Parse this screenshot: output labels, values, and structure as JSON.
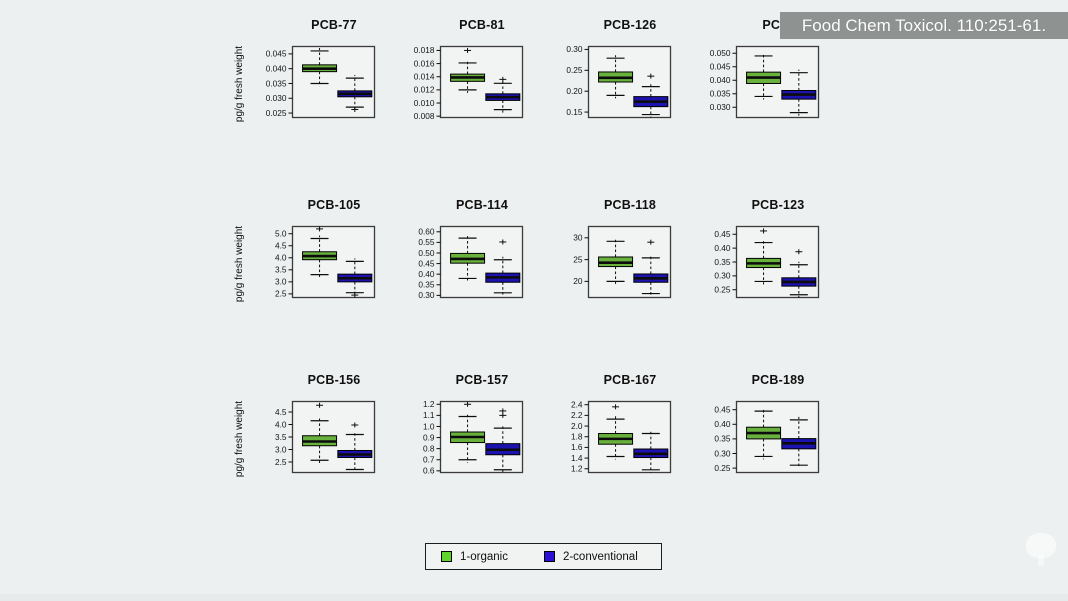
{
  "banner": {
    "text": "Food Chem Toxicol. 110:251-61.",
    "bg_color": "#8e9290",
    "text_color": "#ffffff"
  },
  "legend": {
    "items": [
      {
        "label": "1-organic",
        "color": "#5fd42b"
      },
      {
        "label": "2-conventional",
        "color": "#2b0fd4"
      }
    ]
  },
  "chart_data": {
    "type": "box",
    "ylabel": "pg/g fresh weight",
    "groups": [
      "1-organic",
      "2-conventional"
    ],
    "colors": {
      "organic": "#68b13c",
      "conventional": "#1c12b0",
      "panel": "#f2f4f3",
      "frame": "#3b3b3b"
    },
    "layout": {
      "rows": 3,
      "cols": 4,
      "legend_position": "bottom-center",
      "grid": false
    },
    "plots": [
      {
        "title": "PCB-77",
        "yticks": [
          "0.025",
          "0.030",
          "0.035",
          "0.040",
          "0.045"
        ],
        "ylim": [
          0.0235,
          0.0475
        ],
        "organic": {
          "values": [
            0.035,
            0.039,
            0.04,
            0.0413,
            0.046
          ],
          "outliers": []
        },
        "conventional": {
          "values": [
            0.027,
            0.0305,
            0.0315,
            0.0325,
            0.0368
          ],
          "outliers": [
            0.0262
          ]
        }
      },
      {
        "title": "PCB-81",
        "yticks": [
          "0.008",
          "0.010",
          "0.012",
          "0.014",
          "0.016",
          "0.018"
        ],
        "ylim": [
          0.0078,
          0.0186
        ],
        "organic": {
          "values": [
            0.012,
            0.0133,
            0.0139,
            0.0144,
            0.0161
          ],
          "outliers": [
            0.018
          ]
        },
        "conventional": {
          "values": [
            0.009,
            0.0104,
            0.0109,
            0.0114,
            0.013
          ],
          "outliers": [
            0.0136
          ]
        }
      },
      {
        "title": "PCB-126",
        "yticks": [
          "0.15",
          "0.20",
          "0.25",
          "0.30"
        ],
        "ylim": [
          0.137,
          0.307
        ],
        "organic": {
          "values": [
            0.19,
            0.222,
            0.232,
            0.246,
            0.279
          ],
          "outliers": []
        },
        "conventional": {
          "values": [
            0.144,
            0.163,
            0.175,
            0.187,
            0.211
          ],
          "outliers": [
            0.236
          ]
        }
      },
      {
        "title": "PCB-",
        "yticks": [
          "0.030",
          "0.035",
          "0.040",
          "0.045",
          "0.050"
        ],
        "ylim": [
          0.0262,
          0.0525
        ],
        "organic": {
          "values": [
            0.034,
            0.0388,
            0.041,
            0.043,
            0.049
          ],
          "outliers": []
        },
        "conventional": {
          "values": [
            0.028,
            0.033,
            0.0347,
            0.0362,
            0.0428
          ],
          "outliers": []
        }
      },
      {
        "title": "PCB-105",
        "yticks": [
          "2.5",
          "3.0",
          "3.5",
          "4.0",
          "4.5",
          "5.0"
        ],
        "ylim": [
          2.35,
          5.3
        ],
        "organic": {
          "values": [
            3.3,
            3.92,
            4.07,
            4.25,
            4.8
          ],
          "outliers": [
            5.2
          ]
        },
        "conventional": {
          "values": [
            2.55,
            3.0,
            3.15,
            3.32,
            3.85
          ],
          "outliers": [
            2.45
          ]
        }
      },
      {
        "title": "PCB-114",
        "yticks": [
          "0.30",
          "0.35",
          "0.40",
          "0.45",
          "0.50",
          "0.55",
          "0.60"
        ],
        "ylim": [
          0.29,
          0.625
        ],
        "organic": {
          "values": [
            0.38,
            0.452,
            0.472,
            0.498,
            0.57
          ],
          "outliers": []
        },
        "conventional": {
          "values": [
            0.312,
            0.362,
            0.385,
            0.405,
            0.468
          ],
          "outliers": [
            0.552
          ]
        }
      },
      {
        "title": "PCB-118",
        "yticks": [
          "20",
          "25",
          "30"
        ],
        "ylim": [
          16.3,
          32.6
        ],
        "organic": {
          "values": [
            20.0,
            23.4,
            24.3,
            25.6,
            29.2
          ],
          "outliers": []
        },
        "conventional": {
          "values": [
            17.2,
            19.8,
            20.7,
            21.7,
            25.4
          ],
          "outliers": [
            29.0
          ]
        }
      },
      {
        "title": "PCB-123",
        "yticks": [
          "0.25",
          "0.30",
          "0.35",
          "0.40",
          "0.45"
        ],
        "ylim": [
          0.222,
          0.478
        ],
        "organic": {
          "values": [
            0.28,
            0.33,
            0.345,
            0.363,
            0.42
          ],
          "outliers": [
            0.462
          ]
        },
        "conventional": {
          "values": [
            0.232,
            0.263,
            0.278,
            0.293,
            0.34
          ],
          "outliers": [
            0.387
          ]
        }
      },
      {
        "title": "PCB-156",
        "yticks": [
          "2.5",
          "3.0",
          "3.5",
          "4.0",
          "4.5"
        ],
        "ylim": [
          2.08,
          4.92
        ],
        "organic": {
          "values": [
            2.57,
            3.15,
            3.32,
            3.55,
            4.15
          ],
          "outliers": [
            4.77
          ]
        },
        "conventional": {
          "values": [
            2.2,
            2.68,
            2.8,
            2.96,
            3.6
          ],
          "outliers": [
            3.98
          ]
        }
      },
      {
        "title": "PCB-157",
        "yticks": [
          "0.6",
          "0.7",
          "0.8",
          "0.9",
          "1.0",
          "1.1",
          "1.2"
        ],
        "ylim": [
          0.585,
          1.225
        ],
        "organic": {
          "values": [
            0.7,
            0.855,
            0.905,
            0.95,
            1.09
          ],
          "outliers": [
            1.2
          ]
        },
        "conventional": {
          "values": [
            0.61,
            0.745,
            0.79,
            0.845,
            0.985
          ],
          "outliers": [
            1.1,
            1.14
          ]
        }
      },
      {
        "title": "PCB-167",
        "yticks": [
          "1.2",
          "1.4",
          "1.6",
          "1.8",
          "2.0",
          "2.2",
          "2.4"
        ],
        "ylim": [
          1.13,
          2.46
        ],
        "organic": {
          "values": [
            1.43,
            1.66,
            1.76,
            1.86,
            2.13
          ],
          "outliers": [
            2.36
          ]
        },
        "conventional": {
          "values": [
            1.18,
            1.41,
            1.48,
            1.57,
            1.86
          ],
          "outliers": []
        }
      },
      {
        "title": "PCB-189",
        "yticks": [
          "0.25",
          "0.30",
          "0.35",
          "0.40",
          "0.45"
        ],
        "ylim": [
          0.235,
          0.478
        ],
        "organic": {
          "values": [
            0.29,
            0.35,
            0.37,
            0.39,
            0.445
          ],
          "outliers": []
        },
        "conventional": {
          "values": [
            0.26,
            0.316,
            0.335,
            0.351,
            0.415
          ],
          "outliers": []
        }
      }
    ]
  }
}
